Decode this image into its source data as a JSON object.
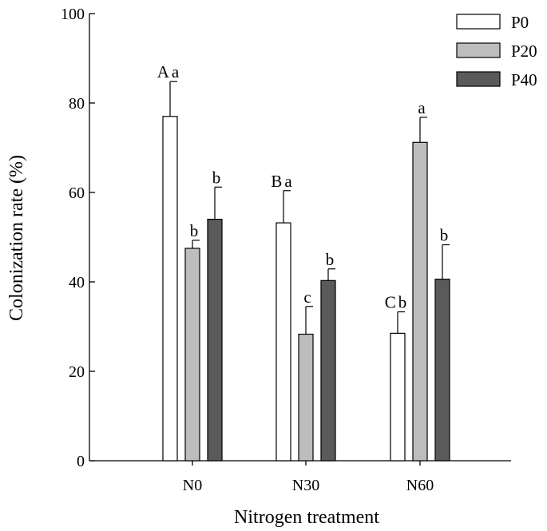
{
  "chart_data": {
    "type": "bar",
    "categories": [
      "N0",
      "N30",
      "N60"
    ],
    "xlabel": "Nitrogen treatment",
    "ylabel": "Colonization rate (%)",
    "ylim": [
      0,
      100
    ],
    "yticks": [
      "0",
      "20",
      "40",
      "60",
      "80",
      "100"
    ],
    "grid": false,
    "legend_position": "top-right",
    "series": [
      {
        "name": "P0",
        "color": "#ffffff",
        "values": [
          77.0,
          53.2,
          28.5
        ],
        "errors": [
          7.8,
          7.2,
          4.8
        ],
        "labels": [
          "Aa",
          "Ba",
          "Cb"
        ]
      },
      {
        "name": "P20",
        "color": "#bdbdbd",
        "values": [
          47.5,
          28.3,
          71.2
        ],
        "errors": [
          1.8,
          6.2,
          5.6
        ],
        "labels": [
          "b",
          "c",
          "a"
        ]
      },
      {
        "name": "P40",
        "color": "#5a5a5a",
        "values": [
          54.0,
          40.3,
          40.6
        ],
        "errors": [
          7.2,
          2.6,
          7.7
        ],
        "labels": [
          "b",
          "b",
          "b"
        ]
      }
    ]
  }
}
